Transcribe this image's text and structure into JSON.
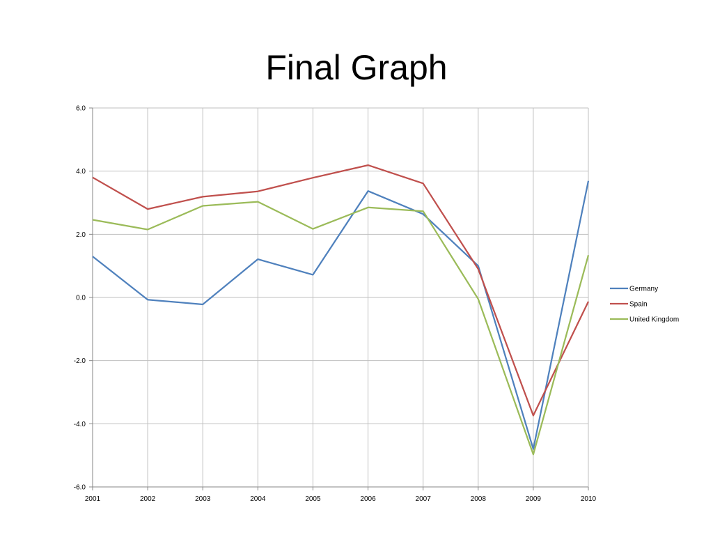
{
  "slide": {
    "title": "Final Graph"
  },
  "chart_data": {
    "type": "line",
    "title": "",
    "xlabel": "",
    "ylabel": "",
    "categories": [
      "2001",
      "2002",
      "2003",
      "2004",
      "2005",
      "2006",
      "2007",
      "2008",
      "2009",
      "2010"
    ],
    "ylim": [
      -6.0,
      6.0
    ],
    "yticks": [
      -6.0,
      -4.0,
      -2.0,
      0.0,
      2.0,
      4.0,
      6.0
    ],
    "ytick_labels": [
      "-6.0",
      "-4.0",
      "-2.0",
      "0.0",
      "2.0",
      "4.0",
      "6.0"
    ],
    "grid": true,
    "legend_position": "right",
    "series": [
      {
        "name": "Germany",
        "color": "#4F81BD",
        "values": [
          1.3,
          -0.07,
          -0.22,
          1.21,
          0.72,
          3.37,
          2.64,
          1.0,
          -4.8,
          3.69
        ]
      },
      {
        "name": "Spain",
        "color": "#C0504D",
        "values": [
          3.8,
          2.8,
          3.19,
          3.36,
          3.79,
          4.19,
          3.61,
          0.9,
          -3.74,
          -0.13
        ]
      },
      {
        "name": "United Kingdom",
        "color": "#9BBB59",
        "values": [
          2.46,
          2.15,
          2.9,
          3.03,
          2.17,
          2.85,
          2.73,
          -0.05,
          -4.97,
          1.34
        ]
      }
    ]
  }
}
